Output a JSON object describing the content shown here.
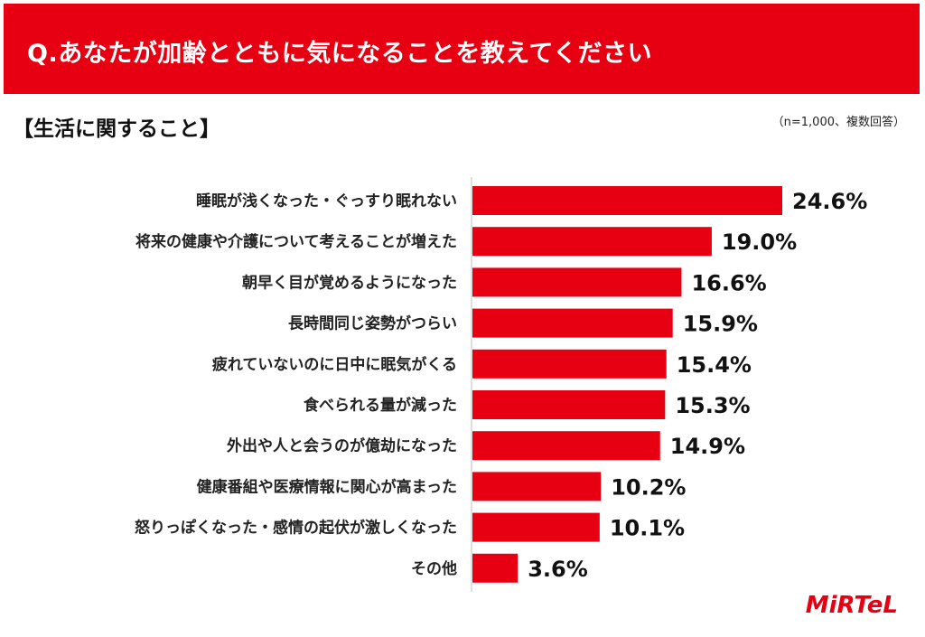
{
  "header": {
    "question": "Q.あなたが加齢とともに気になることを教えてください"
  },
  "section": {
    "title": "【生活に関すること】",
    "note": "（n=1,000、複数回答）"
  },
  "brand": {
    "logo_text": "MiRTeL",
    "accent_color": "#e60012"
  },
  "chart_data": {
    "type": "bar",
    "orientation": "horizontal",
    "categories": [
      "睡眠が浅くなった・ぐっすり眠れない",
      "将来の健康や介護について考えることが増えた",
      "朝早く目が覚めるようになった",
      "長時間同じ姿勢がつらい",
      "疲れていないのに日中に眠気がくる",
      "食べられる量が減った",
      "外出や人と会うのが億劫になった",
      "健康番組や医療情報に関心が高まった",
      "怒りっぽくなった・感情の起伏が激しくなった",
      "その他"
    ],
    "values": [
      24.6,
      19.0,
      16.6,
      15.9,
      15.4,
      15.3,
      14.9,
      10.2,
      10.1,
      3.6
    ],
    "value_labels": [
      "24.6%",
      "19.0%",
      "16.6%",
      "15.9%",
      "15.4%",
      "15.3%",
      "14.9%",
      "10.2%",
      "10.1%",
      "3.6%"
    ],
    "bar_color": "#e60012",
    "xlim": [
      0,
      24.6
    ],
    "grid": false
  }
}
